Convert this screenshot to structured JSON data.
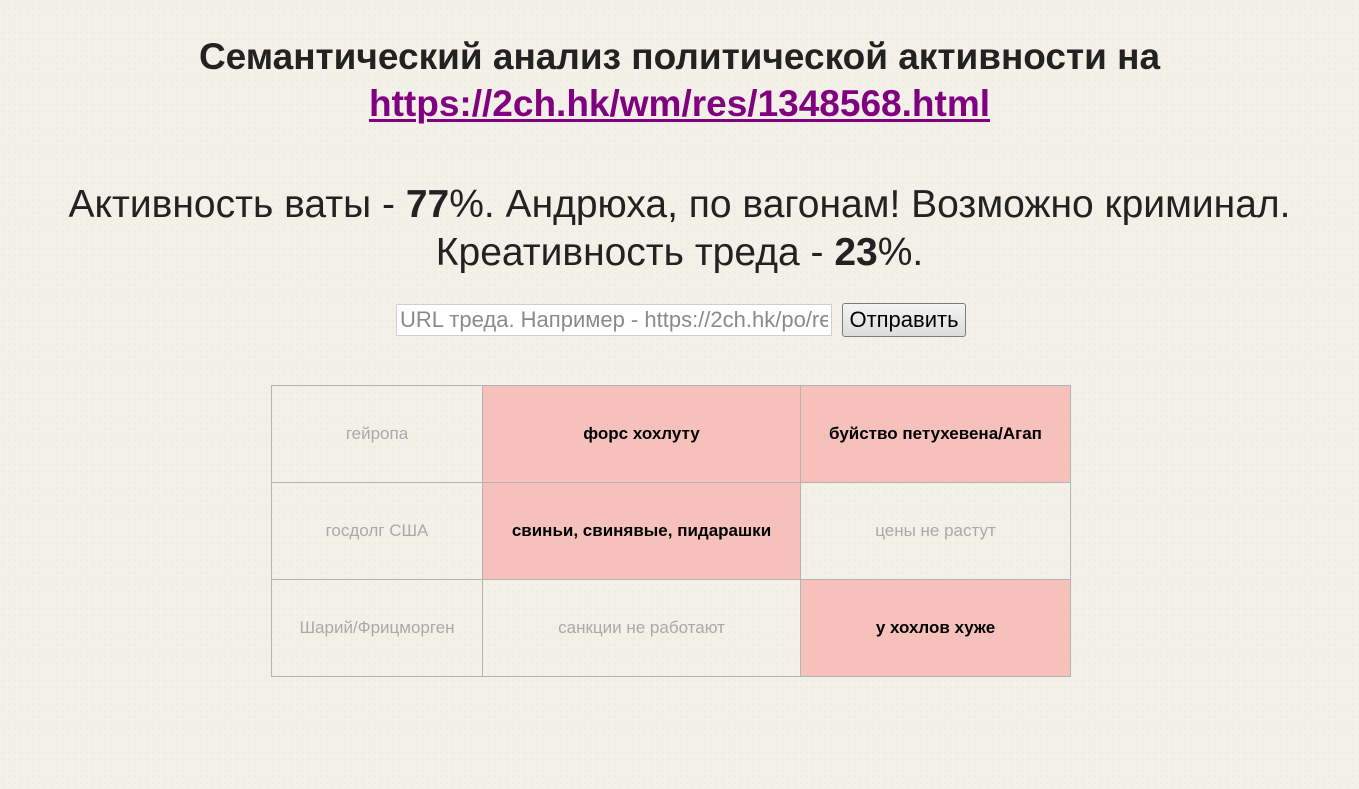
{
  "header": {
    "title_prefix": "Семантический анализ политической активности на",
    "thread_url": "https://2ch.hk/wm/res/1348568.html"
  },
  "stats": {
    "vata_label": "Активность ваты - ",
    "vata_value": "77",
    "vata_suffix": "%. Андрюха, по вагонам! Возможно криминал.",
    "creativity_label": "Креативность треда - ",
    "creativity_value": "23",
    "creativity_suffix": "%."
  },
  "form": {
    "input_value": "",
    "input_placeholder": "URL треда. Например - https://2ch.hk/po/res/123456.html",
    "submit_label": "Отправить"
  },
  "bingo": {
    "rows": [
      [
        {
          "text": "гейропа",
          "hit": false
        },
        {
          "text": "форс хохлуту",
          "hit": true
        },
        {
          "text": "буйство петухевена/Агап",
          "hit": true
        }
      ],
      [
        {
          "text": "госдолг США",
          "hit": false
        },
        {
          "text": "свиньи, свинявые, пидарашки",
          "hit": true
        },
        {
          "text": "цены не растут",
          "hit": false
        }
      ],
      [
        {
          "text": "Шарий/Фрицморген",
          "hit": false
        },
        {
          "text": "санкции не работают",
          "hit": false
        },
        {
          "text": "у хохлов хуже",
          "hit": true
        }
      ]
    ],
    "hit_color": "#f6c1bb"
  }
}
